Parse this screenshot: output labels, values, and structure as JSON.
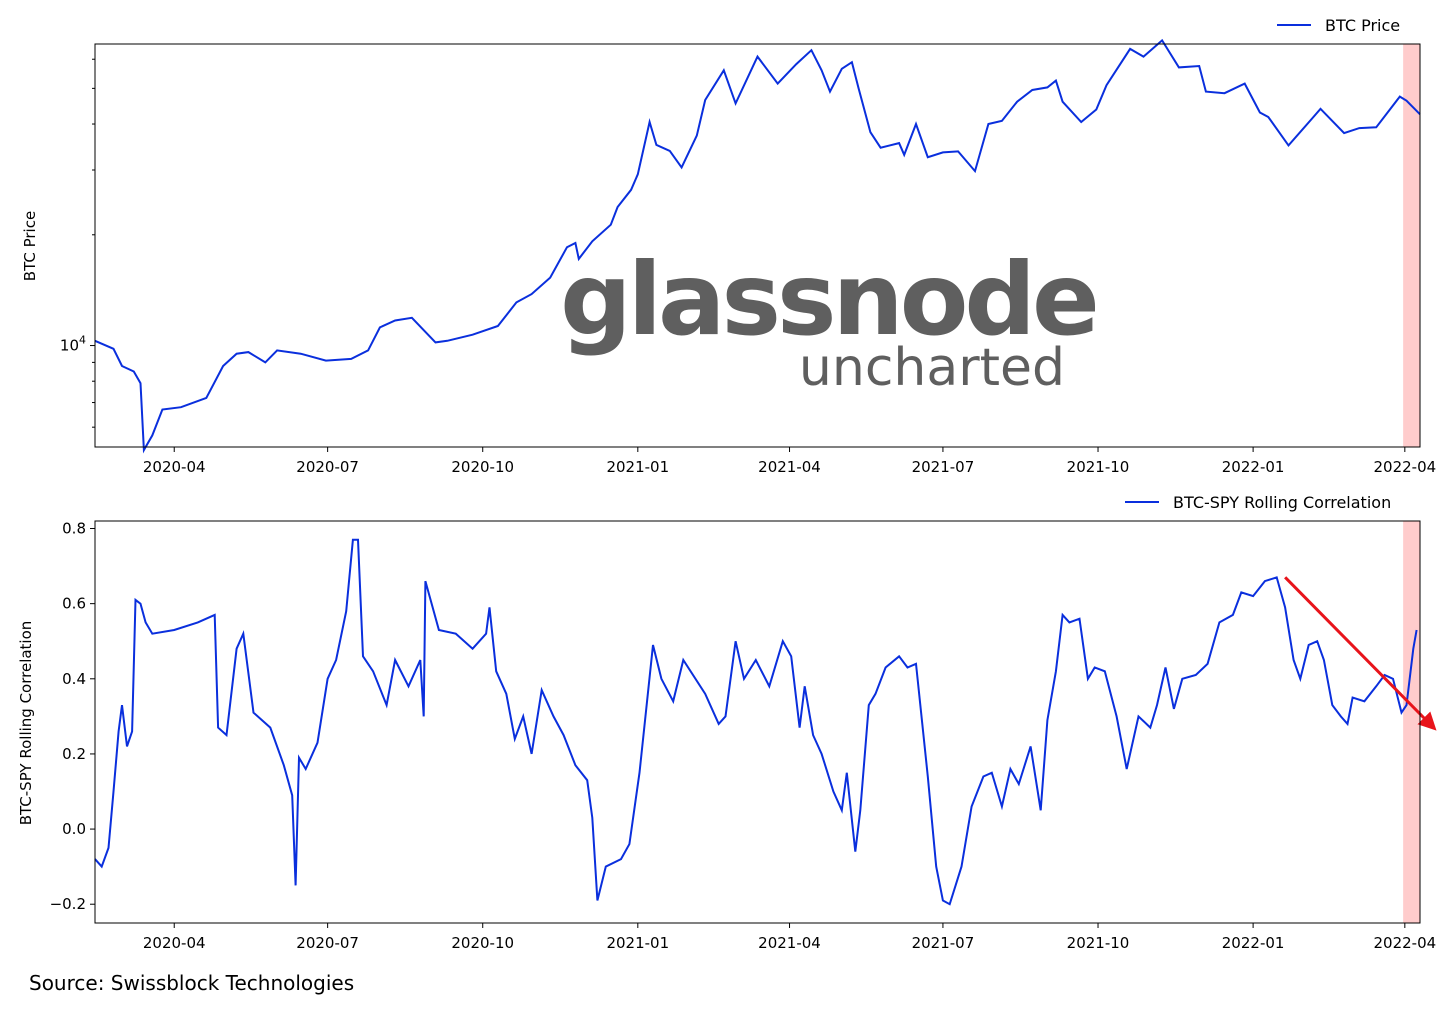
{
  "watermark": {
    "main": "glassnode",
    "sub": "uncharted"
  },
  "source": "Source: Swissblock Technologies",
  "colors": {
    "series": "#0a2fdd",
    "highlight": "#ffcccc",
    "arrow": "#e8141b"
  },
  "x_ticks": [
    {
      "label": "2020-04",
      "date": "2020-04-01"
    },
    {
      "label": "2020-07",
      "date": "2020-07-01"
    },
    {
      "label": "2020-10",
      "date": "2020-10-01"
    },
    {
      "label": "2021-01",
      "date": "2021-01-01"
    },
    {
      "label": "2021-04",
      "date": "2021-04-01"
    },
    {
      "label": "2021-07",
      "date": "2021-07-01"
    },
    {
      "label": "2021-10",
      "date": "2021-10-01"
    },
    {
      "label": "2022-01",
      "date": "2022-01-01"
    },
    {
      "label": "2022-04",
      "date": "2022-04-01"
    }
  ],
  "chart_data": [
    {
      "type": "line",
      "ylabel": "BTC Price",
      "yscale": "log",
      "xlim": [
        "2020-02-14",
        "2022-04-10"
      ],
      "ylim": [
        5300,
        66000
      ],
      "y_ticks": [
        {
          "label_base": "10",
          "label_exp": "4",
          "value": 10000
        }
      ],
      "legend": {
        "label": "BTC Price",
        "position": "top-right"
      },
      "highlight_range": [
        "2022-03-31",
        "2022-04-10"
      ],
      "series": [
        {
          "name": "BTC Price",
          "x": [
            "2020-02-14",
            "2020-02-25",
            "2020-03-01",
            "2020-03-08",
            "2020-03-12",
            "2020-03-14",
            "2020-03-19",
            "2020-03-25",
            "2020-04-05",
            "2020-04-20",
            "2020-04-30",
            "2020-05-08",
            "2020-05-15",
            "2020-05-25",
            "2020-06-01",
            "2020-06-15",
            "2020-06-30",
            "2020-07-15",
            "2020-07-25",
            "2020-08-01",
            "2020-08-10",
            "2020-08-20",
            "2020-09-03",
            "2020-09-10",
            "2020-09-25",
            "2020-10-10",
            "2020-10-21",
            "2020-10-30",
            "2020-11-10",
            "2020-11-20",
            "2020-11-25",
            "2020-11-27",
            "2020-12-05",
            "2020-12-16",
            "2020-12-20",
            "2020-12-28",
            "2021-01-01",
            "2021-01-08",
            "2021-01-12",
            "2021-01-20",
            "2021-01-27",
            "2021-02-05",
            "2021-02-10",
            "2021-02-21",
            "2021-02-28",
            "2021-03-13",
            "2021-03-25",
            "2021-04-05",
            "2021-04-14",
            "2021-04-20",
            "2021-04-25",
            "2021-05-02",
            "2021-05-08",
            "2021-05-12",
            "2021-05-19",
            "2021-05-25",
            "2021-06-05",
            "2021-06-08",
            "2021-06-15",
            "2021-06-22",
            "2021-07-01",
            "2021-07-10",
            "2021-07-20",
            "2021-07-28",
            "2021-08-05",
            "2021-08-14",
            "2021-08-23",
            "2021-09-01",
            "2021-09-06",
            "2021-09-10",
            "2021-09-21",
            "2021-09-30",
            "2021-10-06",
            "2021-10-20",
            "2021-10-28",
            "2021-11-08",
            "2021-11-18",
            "2021-11-30",
            "2021-12-04",
            "2021-12-15",
            "2021-12-27",
            "2022-01-05",
            "2022-01-10",
            "2022-01-22",
            "2022-02-05",
            "2022-02-10",
            "2022-02-24",
            "2022-03-05",
            "2022-03-15",
            "2022-03-29",
            "2022-04-02",
            "2022-04-10"
          ],
          "y": [
            10300,
            9800,
            8800,
            8500,
            7900,
            5200,
            5700,
            6700,
            6800,
            7200,
            8800,
            9500,
            9600,
            9000,
            9700,
            9500,
            9100,
            9200,
            9700,
            11200,
            11700,
            11900,
            10200,
            10300,
            10700,
            11300,
            13100,
            13800,
            15300,
            18500,
            19000,
            17200,
            19200,
            21300,
            23800,
            26500,
            29200,
            40500,
            35100,
            33800,
            30500,
            37200,
            46500,
            56000,
            45500,
            61000,
            51500,
            58200,
            63500,
            56000,
            49000,
            56500,
            58900,
            50000,
            38000,
            34500,
            35500,
            33000,
            40000,
            32500,
            33500,
            33700,
            29800,
            40000,
            40800,
            46000,
            49500,
            50300,
            52500,
            46000,
            40500,
            43800,
            51000,
            64000,
            61000,
            67500,
            57000,
            57500,
            49000,
            48500,
            51500,
            43000,
            41800,
            35000,
            41400,
            44000,
            37800,
            39000,
            39200,
            47500,
            46300,
            42500
          ]
        }
      ]
    },
    {
      "type": "line",
      "ylabel": "BTC-SPY Rolling Correlation",
      "xlim": [
        "2020-02-14",
        "2022-04-10"
      ],
      "ylim": [
        -0.25,
        0.82
      ],
      "y_ticks": [
        {
          "label": "−0.2",
          "value": -0.2
        },
        {
          "label": "0.0",
          "value": 0.0
        },
        {
          "label": "0.2",
          "value": 0.2
        },
        {
          "label": "0.4",
          "value": 0.4
        },
        {
          "label": "0.6",
          "value": 0.6
        },
        {
          "label": "0.8",
          "value": 0.8
        }
      ],
      "legend": {
        "label": "BTC-SPY Rolling Correlation",
        "position": "top-right"
      },
      "highlight_range": [
        "2022-03-31",
        "2022-04-10"
      ],
      "trend_arrow": {
        "from": {
          "x": "2022-01-20",
          "y": 0.67
        },
        "to": {
          "x": "2022-04-10",
          "y": 0.29
        }
      },
      "series": [
        {
          "name": "BTC-SPY Rolling Correlation",
          "x": [
            "2020-02-14",
            "2020-02-18",
            "2020-02-22",
            "2020-02-25",
            "2020-02-28",
            "2020-03-01",
            "2020-03-04",
            "2020-03-07",
            "2020-03-09",
            "2020-03-12",
            "2020-03-15",
            "2020-03-19",
            "2020-04-01",
            "2020-04-15",
            "2020-04-25",
            "2020-04-27",
            "2020-05-02",
            "2020-05-08",
            "2020-05-12",
            "2020-05-18",
            "2020-05-28",
            "2020-06-05",
            "2020-06-10",
            "2020-06-12",
            "2020-06-14",
            "2020-06-18",
            "2020-06-25",
            "2020-07-01",
            "2020-07-06",
            "2020-07-12",
            "2020-07-16",
            "2020-07-19",
            "2020-07-22",
            "2020-07-28",
            "2020-08-05",
            "2020-08-10",
            "2020-08-18",
            "2020-08-25",
            "2020-08-27",
            "2020-08-28",
            "2020-09-05",
            "2020-09-15",
            "2020-09-25",
            "2020-10-03",
            "2020-10-05",
            "2020-10-09",
            "2020-10-15",
            "2020-10-20",
            "2020-10-25",
            "2020-10-30",
            "2020-11-05",
            "2020-11-12",
            "2020-11-18",
            "2020-11-25",
            "2020-12-02",
            "2020-12-05",
            "2020-12-08",
            "2020-12-13",
            "2020-12-22",
            "2020-12-27",
            "2021-01-02",
            "2021-01-10",
            "2021-01-15",
            "2021-01-22",
            "2021-01-28",
            "2021-02-10",
            "2021-02-18",
            "2021-02-22",
            "2021-02-28",
            "2021-03-05",
            "2021-03-12",
            "2021-03-20",
            "2021-03-28",
            "2021-04-02",
            "2021-04-07",
            "2021-04-10",
            "2021-04-15",
            "2021-04-20",
            "2021-04-27",
            "2021-05-02",
            "2021-05-05",
            "2021-05-10",
            "2021-05-13",
            "2021-05-18",
            "2021-05-22",
            "2021-05-28",
            "2021-06-05",
            "2021-06-10",
            "2021-06-15",
            "2021-06-22",
            "2021-06-27",
            "2021-07-01",
            "2021-07-05",
            "2021-07-12",
            "2021-07-18",
            "2021-07-25",
            "2021-07-30",
            "2021-08-05",
            "2021-08-10",
            "2021-08-15",
            "2021-08-22",
            "2021-08-28",
            "2021-09-01",
            "2021-09-06",
            "2021-09-10",
            "2021-09-14",
            "2021-09-20",
            "2021-09-25",
            "2021-09-29",
            "2021-10-05",
            "2021-10-12",
            "2021-10-18",
            "2021-10-25",
            "2021-11-01",
            "2021-11-05",
            "2021-11-10",
            "2021-11-15",
            "2021-11-20",
            "2021-11-28",
            "2021-12-05",
            "2021-12-12",
            "2021-12-20",
            "2021-12-25",
            "2022-01-01",
            "2022-01-08",
            "2022-01-15",
            "2022-01-20",
            "2022-01-25",
            "2022-01-29",
            "2022-02-03",
            "2022-02-08",
            "2022-02-12",
            "2022-02-17",
            "2022-02-22",
            "2022-02-26",
            "2022-03-01",
            "2022-03-08",
            "2022-03-15",
            "2022-03-20",
            "2022-03-25",
            "2022-03-30",
            "2022-04-02",
            "2022-04-06",
            "2022-04-08"
          ],
          "y": [
            -0.08,
            -0.1,
            -0.05,
            0.1,
            0.26,
            0.33,
            0.22,
            0.26,
            0.61,
            0.6,
            0.55,
            0.52,
            0.53,
            0.55,
            0.57,
            0.27,
            0.25,
            0.48,
            0.52,
            0.31,
            0.27,
            0.17,
            0.09,
            -0.15,
            0.19,
            0.16,
            0.23,
            0.4,
            0.45,
            0.58,
            0.77,
            0.77,
            0.46,
            0.42,
            0.33,
            0.45,
            0.38,
            0.45,
            0.3,
            0.66,
            0.53,
            0.52,
            0.48,
            0.52,
            0.59,
            0.42,
            0.36,
            0.24,
            0.3,
            0.2,
            0.37,
            0.3,
            0.25,
            0.17,
            0.13,
            0.03,
            -0.19,
            -0.1,
            -0.08,
            -0.04,
            0.15,
            0.49,
            0.4,
            0.34,
            0.45,
            0.36,
            0.28,
            0.3,
            0.5,
            0.4,
            0.45,
            0.38,
            0.5,
            0.46,
            0.27,
            0.38,
            0.25,
            0.2,
            0.1,
            0.05,
            0.15,
            -0.06,
            0.05,
            0.33,
            0.36,
            0.43,
            0.46,
            0.43,
            0.44,
            0.14,
            -0.1,
            -0.19,
            -0.2,
            -0.1,
            0.06,
            0.14,
            0.15,
            0.06,
            0.16,
            0.12,
            0.22,
            0.05,
            0.29,
            0.42,
            0.57,
            0.55,
            0.56,
            0.4,
            0.43,
            0.42,
            0.3,
            0.16,
            0.3,
            0.27,
            0.33,
            0.43,
            0.32,
            0.4,
            0.41,
            0.44,
            0.55,
            0.57,
            0.63,
            0.62,
            0.66,
            0.67,
            0.59,
            0.45,
            0.4,
            0.49,
            0.5,
            0.45,
            0.33,
            0.3,
            0.28,
            0.35,
            0.34,
            0.38,
            0.41,
            0.4,
            0.31,
            0.33,
            0.48,
            0.53
          ]
        }
      ]
    }
  ]
}
